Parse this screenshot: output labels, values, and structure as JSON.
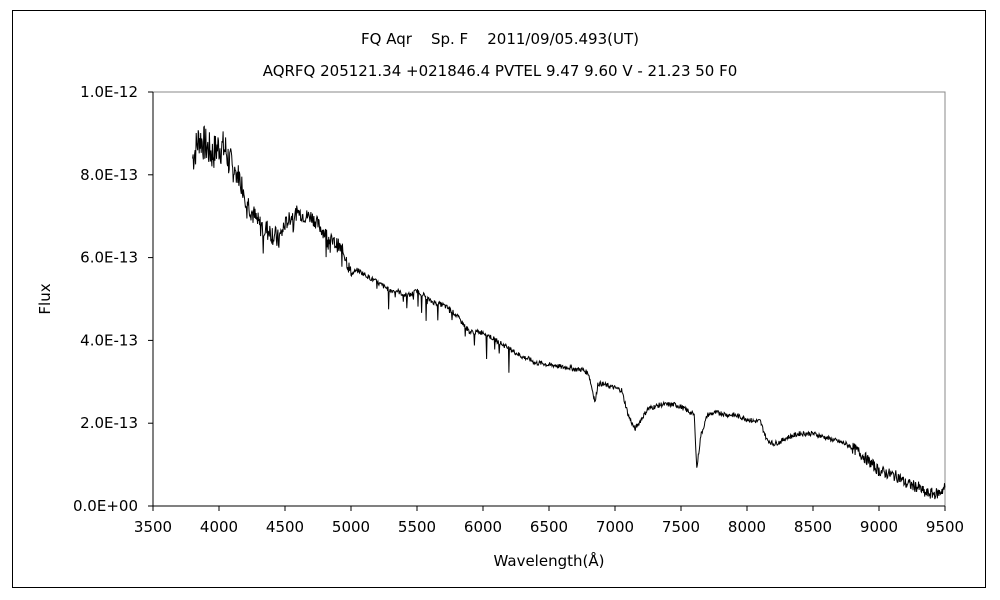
{
  "chart_data": {
    "type": "line",
    "title": "FQ Aqr    Sp. F    2011/09/05.493(UT)",
    "subtitle": "AQRFQ 205121.34 +021846.4 PVTEL 9.47 9.60 V - 21.23 50 F0",
    "xlabel": "Wavelength(Å)",
    "ylabel": "Flux",
    "xlim": [
      3500,
      9500
    ],
    "ylim": [
      0,
      1e-12
    ],
    "xticks": [
      3500,
      4000,
      4500,
      5000,
      5500,
      6000,
      6500,
      7000,
      7500,
      8000,
      8500,
      9000,
      9500
    ],
    "xtick_labels": [
      "3500",
      "4000",
      "4500",
      "5000",
      "5500",
      "6000",
      "6500",
      "7000",
      "7500",
      "8000",
      "8500",
      "9000",
      "9500"
    ],
    "yticks": [
      0,
      2e-13,
      4e-13,
      6e-13,
      8e-13,
      1e-12
    ],
    "ytick_labels": [
      "0.0E+00",
      "2.0E-13",
      "4.0E-13",
      "6.0E-13",
      "8.0E-13",
      "1.0E-12"
    ],
    "grid": false,
    "legend": "none",
    "line_color": "#000000",
    "series": [
      {
        "x": [
          3800,
          3850,
          3900,
          3950,
          4000,
          4050,
          4100,
          4150,
          4200,
          4250,
          4300,
          4350,
          4400,
          4450,
          4500,
          4550,
          4600,
          4650,
          4700,
          4750,
          4800,
          4850,
          4900,
          4950,
          5000,
          5050,
          5100,
          5150,
          5200,
          5250,
          5300,
          5350,
          5400,
          5450,
          5500,
          5550,
          5600,
          5650,
          5700,
          5750,
          5800,
          5850,
          5900,
          5950,
          6000,
          6050,
          6100,
          6150,
          6200,
          6250,
          6300,
          6350,
          6400,
          6450,
          6500,
          6550,
          6600,
          6650,
          6700,
          6750,
          6800,
          6850,
          6870,
          6900,
          6950,
          7000,
          7050,
          7100,
          7150,
          7200,
          7250,
          7300,
          7350,
          7400,
          7450,
          7500,
          7550,
          7600,
          7620,
          7650,
          7700,
          7750,
          7800,
          7850,
          7900,
          7950,
          8000,
          8050,
          8100,
          8150,
          8200,
          8250,
          8300,
          8350,
          8400,
          8450,
          8500,
          8550,
          8600,
          8650,
          8700,
          8750,
          8800,
          8850,
          8900,
          8950,
          9000,
          9050,
          9100,
          9150,
          9200,
          9250,
          9300,
          9350,
          9400,
          9450,
          9500
        ],
        "y": [
          8.4e-13,
          8.9e-13,
          8.7e-13,
          8.5e-13,
          8.7e-13,
          8.6e-13,
          8.1e-13,
          8e-13,
          7.5e-13,
          7.1e-13,
          6.8e-13,
          6.7e-13,
          6.6e-13,
          6.4e-13,
          6.8e-13,
          7e-13,
          7.1e-13,
          7e-13,
          7e-13,
          6.8e-13,
          6.6e-13,
          6.4e-13,
          6.3e-13,
          6.1e-13,
          5.6e-13,
          5.7e-13,
          5.6e-13,
          5.5e-13,
          5.4e-13,
          5.3e-13,
          5.2e-13,
          5.2e-13,
          5.1e-13,
          5.1e-13,
          5.2e-13,
          5.1e-13,
          4.95e-13,
          4.9e-13,
          4.85e-13,
          4.75e-13,
          4.6e-13,
          4.4e-13,
          4.2e-13,
          4.2e-13,
          4.2e-13,
          4.1e-13,
          4e-13,
          3.9e-13,
          3.8e-13,
          3.7e-13,
          3.6e-13,
          3.55e-13,
          3.45e-13,
          3.45e-13,
          3.4e-13,
          3.4e-13,
          3.35e-13,
          3.35e-13,
          3.3e-13,
          3.3e-13,
          3.2e-13,
          2.5e-13,
          2.95e-13,
          2.95e-13,
          2.9e-13,
          2.85e-13,
          2.8e-13,
          2.2e-13,
          1.85e-13,
          2.1e-13,
          2.35e-13,
          2.4e-13,
          2.45e-13,
          2.45e-13,
          2.45e-13,
          2.4e-13,
          2.3e-13,
          2.2e-13,
          9e-14,
          1.7e-13,
          2.2e-13,
          2.25e-13,
          2.25e-13,
          2.2e-13,
          2.2e-13,
          2.15e-13,
          2.1e-13,
          2.05e-13,
          2.05e-13,
          1.6e-13,
          1.5e-13,
          1.55e-13,
          1.65e-13,
          1.7e-13,
          1.75e-13,
          1.75e-13,
          1.75e-13,
          1.7e-13,
          1.65e-13,
          1.6e-13,
          1.55e-13,
          1.5e-13,
          1.4e-13,
          1.3e-13,
          1.15e-13,
          1e-13,
          8.5e-14,
          8e-14,
          7.5e-14,
          7e-14,
          5.5e-14,
          5e-14,
          4.5e-14,
          3e-14,
          3e-14,
          3e-14,
          4.5e-14
        ]
      }
    ]
  }
}
